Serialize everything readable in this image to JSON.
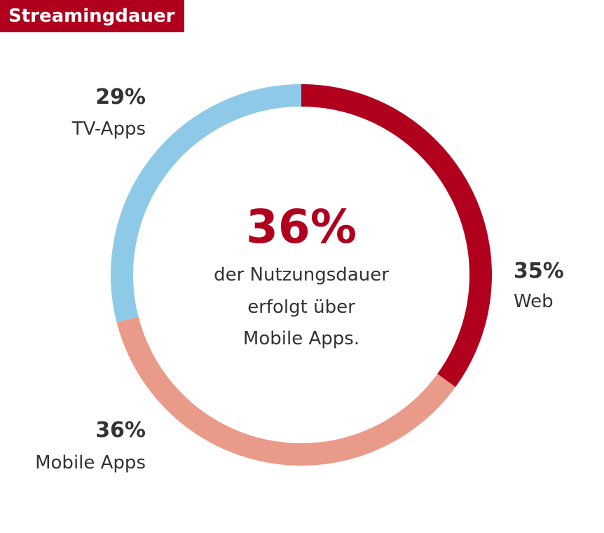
{
  "chart_data": {
    "type": "pie",
    "title": "Streamingdauer",
    "categories": [
      "Web",
      "Mobile Apps",
      "TV-Apps"
    ],
    "values": [
      35,
      36,
      29
    ],
    "value_labels": [
      "35%",
      "36%",
      "29%"
    ],
    "colors": [
      "#b0001e",
      "#ea9a88",
      "#8ecae8"
    ],
    "center": {
      "value": "36%",
      "lines": [
        "der Nutzungsdauer",
        "erfolgt über",
        "Mobile Apps."
      ],
      "color": "#b0001e"
    }
  }
}
